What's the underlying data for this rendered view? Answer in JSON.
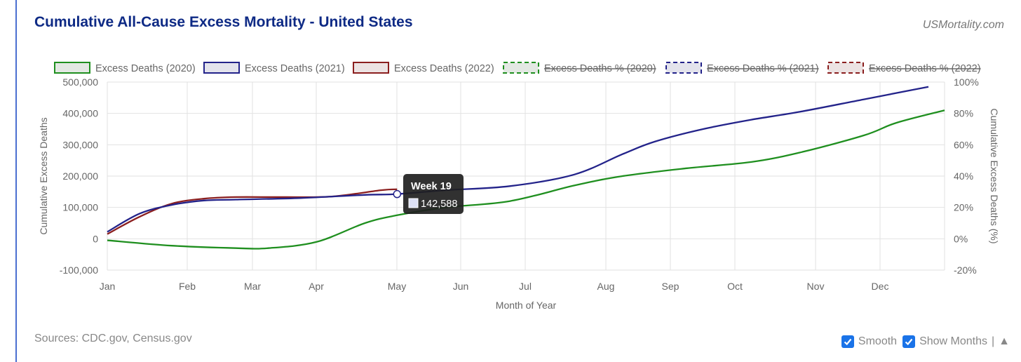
{
  "header": {
    "title": "Cumulative All-Cause Excess Mortality - United States",
    "brand": "USMortality.com"
  },
  "footer": {
    "sources": "Sources: CDC.gov, Census.gov",
    "smooth_label": "Smooth",
    "show_months_label": "Show Months",
    "separator": "|",
    "collapse_glyph": "▲"
  },
  "colors": {
    "2020": "#1f8f1f",
    "2021": "#23238a",
    "2022": "#8b1f1f"
  },
  "tooltip": {
    "title": "Week 19",
    "value": "142,588"
  },
  "chart_data": {
    "type": "line",
    "xlabel": "Month of Year",
    "ylabel": "Cumulative Excess Deaths",
    "y2label": "Cumulative Excess Deaths (%)",
    "ylim": [
      -100000,
      500000
    ],
    "y2lim": [
      -20,
      100
    ],
    "x_ticks": [
      "Jan",
      "Feb",
      "Mar",
      "Apr",
      "May",
      "Jun",
      "Jul",
      "Aug",
      "Sep",
      "Oct",
      "Nov",
      "Dec"
    ],
    "y_ticks": [
      "500,000",
      "400,000",
      "300,000",
      "200,000",
      "100,000",
      "0",
      "-100,000"
    ],
    "y2_ticks": [
      "100%",
      "80%",
      "60%",
      "40%",
      "20%",
      "0%",
      "-20%"
    ],
    "grid": true,
    "legend_position": "top",
    "legend": [
      {
        "label": "Excess Deaths (2020)",
        "key": "2020",
        "dashed": false,
        "hidden": false
      },
      {
        "label": "Excess Deaths (2021)",
        "key": "2021",
        "dashed": false,
        "hidden": false
      },
      {
        "label": "Excess Deaths (2022)",
        "key": "2022",
        "dashed": false,
        "hidden": false
      },
      {
        "label": "Excess Deaths % (2020)",
        "key": "2020",
        "dashed": true,
        "hidden": true
      },
      {
        "label": "Excess Deaths % (2021)",
        "key": "2021",
        "dashed": true,
        "hidden": true
      },
      {
        "label": "Excess Deaths % (2022)",
        "key": "2022",
        "dashed": true,
        "hidden": true
      }
    ],
    "series": [
      {
        "name": "Excess Deaths (2020)",
        "key": "2020",
        "weeks": [
          1,
          5,
          9,
          11,
          14,
          17,
          19,
          22,
          26,
          30,
          33,
          37,
          41,
          44,
          48,
          50,
          53
        ],
        "values": [
          -5000,
          -22000,
          -30000,
          -30000,
          -10000,
          50000,
          75000,
          100000,
          120000,
          170000,
          200000,
          225000,
          245000,
          275000,
          330000,
          370000,
          410000
        ]
      },
      {
        "name": "Excess Deaths (2021)",
        "key": "2021",
        "weeks": [
          1,
          3,
          5,
          7,
          9,
          13,
          17,
          19,
          22,
          26,
          30,
          33,
          35,
          38,
          41,
          44,
          48,
          52
        ],
        "values": [
          22000,
          80000,
          108000,
          122000,
          125000,
          130000,
          140000,
          142588,
          155000,
          168000,
          205000,
          270000,
          310000,
          350000,
          380000,
          405000,
          445000,
          485000
        ]
      },
      {
        "name": "Excess Deaths (2022)",
        "key": "2022",
        "weeks": [
          1,
          3,
          5,
          7,
          9,
          12,
          15,
          18,
          19
        ],
        "values": [
          15000,
          70000,
          112000,
          128000,
          133000,
          133000,
          135000,
          155000,
          158000
        ]
      }
    ],
    "highlight": {
      "series": "2021",
      "week": 19,
      "value": 142588
    }
  }
}
